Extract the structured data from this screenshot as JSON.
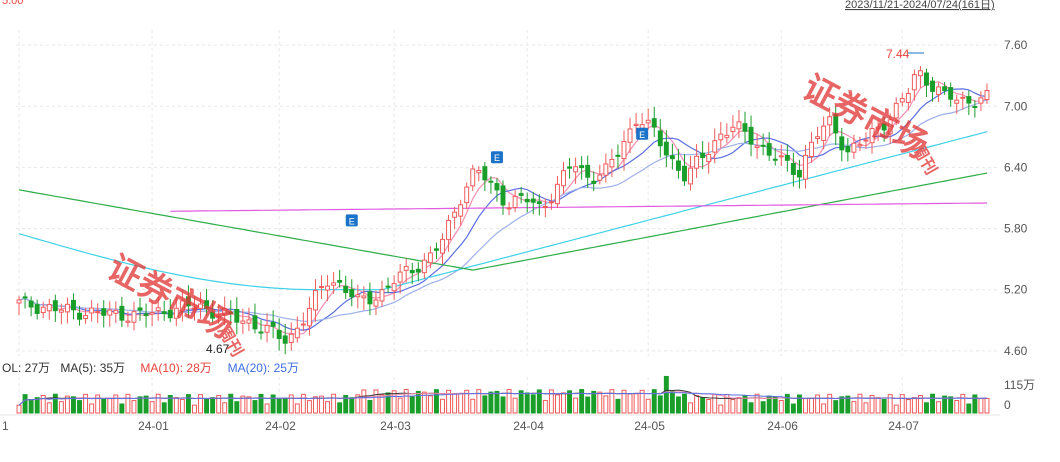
{
  "top_right_label": "2023/11/21-2024/07/24(161日)",
  "chart_data": {
    "type": "candlestick",
    "x_tick_labels": [
      "1",
      "24-01",
      "24-02",
      "24-03",
      "24-04",
      "24-05",
      "24-06",
      "24-07"
    ],
    "price_axis": {
      "ticks": [
        4.6,
        5.2,
        5.8,
        6.4,
        7.0,
        7.6
      ],
      "ylim": [
        4.55,
        7.65
      ]
    },
    "volume_axis": {
      "ticks": [
        "115万",
        "0"
      ]
    },
    "annotations": {
      "high_label": "7.44",
      "low_label": "4.67"
    },
    "signal_markers": [
      {
        "label": "E",
        "color": "#1a73c9"
      },
      {
        "label": "E",
        "color": "#1a73c9"
      },
      {
        "label": "E",
        "color": "#1a73c9"
      }
    ],
    "volume_legend": [
      {
        "text": "OL: 27万",
        "color": "#333333"
      },
      {
        "text": "MA(5): 35万",
        "color": "#333333"
      },
      {
        "text": "MA(10): 28万",
        "color": "#e8443b"
      },
      {
        "text": "MA(20): 25万",
        "color": "#3d6ee0"
      }
    ],
    "colors": {
      "up": "#f05b5b",
      "down": "#1a9e2a",
      "ma5": "#f48fb1",
      "ma10": "#5a6ee0",
      "ma20": "#9db1ea",
      "ma60": "#3fd0e8",
      "ma120": "#2fae4a",
      "ma250": "#e05ce0"
    },
    "watermark": {
      "text": "证券市场",
      "sub": "周刊"
    }
  }
}
